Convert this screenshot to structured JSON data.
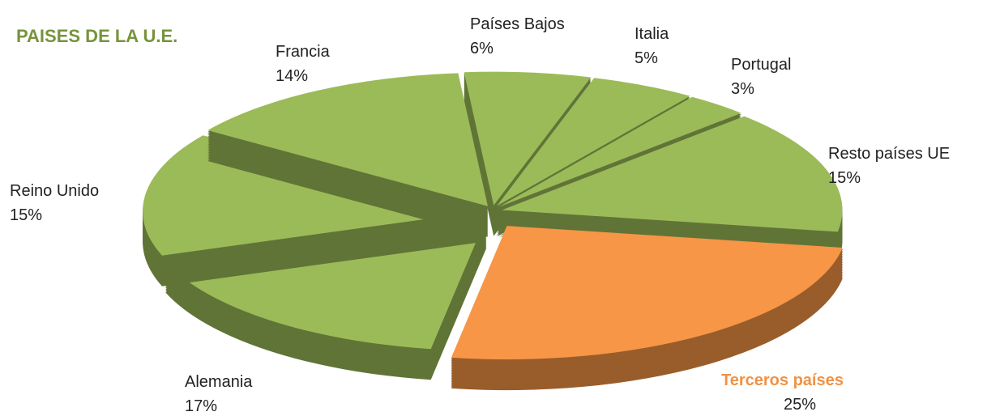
{
  "chart_data": {
    "type": "pie",
    "title": "PAISES DE LA U.E.",
    "categories": [
      "Países Bajos",
      "Italia",
      "Portugal",
      "Resto países UE",
      "Terceros países",
      "Alemania",
      "Reino Unido",
      "Francia"
    ],
    "values": [
      6,
      5,
      3,
      15,
      25,
      17,
      15,
      14
    ],
    "value_labels": [
      "6%",
      "5%",
      "3%",
      "15%",
      "25%",
      "17%",
      "15%",
      "14%"
    ],
    "colors": [
      "#9bbb59",
      "#9bbb59",
      "#9bbb59",
      "#9bbb59",
      "#f79646",
      "#9bbb59",
      "#9bbb59",
      "#9bbb59"
    ]
  }
}
